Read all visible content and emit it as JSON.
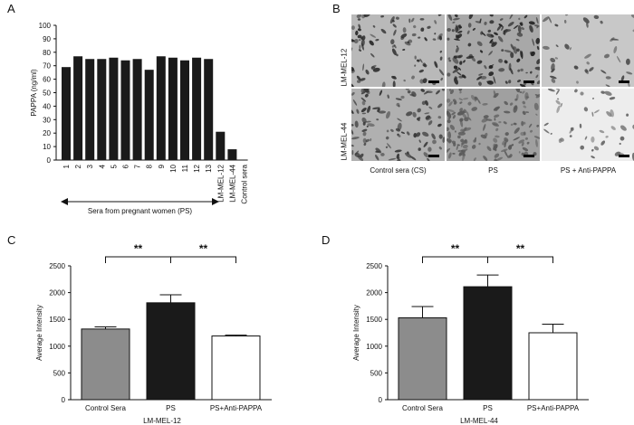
{
  "panels": {
    "A": "A",
    "B": "B",
    "C": "C",
    "D": "D"
  },
  "chart_data": [
    {
      "panel": "A",
      "type": "bar",
      "ylabel": "PAPPA (ng/ml)",
      "ylim": [
        0,
        100
      ],
      "yticks": [
        0,
        10,
        20,
        30,
        40,
        50,
        60,
        70,
        80,
        90,
        100
      ],
      "categories": [
        "1",
        "2",
        "3",
        "4",
        "5",
        "6",
        "7",
        "8",
        "9",
        "10",
        "11",
        "12",
        "13",
        "LM-MEL-12",
        "LM-MEL-44",
        "Control sera"
      ],
      "values": [
        69,
        77,
        75,
        75,
        76,
        74,
        75,
        67,
        77,
        76,
        74,
        76,
        75,
        21,
        8,
        0
      ],
      "annotation": "Sera from pregnant women (PS)",
      "colors": {
        "bar": "#1a1a1a"
      }
    },
    {
      "panel": "C",
      "type": "bar",
      "ylabel": "Average Intensity",
      "xlabel": "LM-MEL-12",
      "ylim": [
        0,
        2500
      ],
      "yticks": [
        0,
        500,
        1000,
        1500,
        2000,
        2500
      ],
      "categories": [
        "Control Sera",
        "PS",
        "PS+Anti-PAPPA"
      ],
      "values": [
        1320,
        1810,
        1190
      ],
      "errors": [
        40,
        150,
        15
      ],
      "bar_colors": [
        "#8c8c8c",
        "#1a1a1a",
        "#ffffff"
      ],
      "significance": [
        "**",
        "**"
      ]
    },
    {
      "panel": "D",
      "type": "bar",
      "ylabel": "Average Intensity",
      "xlabel": "LM-MEL-44",
      "ylim": [
        0,
        2500
      ],
      "yticks": [
        0,
        500,
        1000,
        1500,
        2000,
        2500
      ],
      "categories": [
        "Control Sera",
        "PS",
        "PS+Anti-PAPPA"
      ],
      "values": [
        1530,
        2110,
        1250
      ],
      "errors": [
        210,
        220,
        160
      ],
      "bar_colors": [
        "#8c8c8c",
        "#1a1a1a",
        "#ffffff"
      ],
      "significance": [
        "**",
        "**"
      ]
    }
  ],
  "micrographs": {
    "row_labels": [
      "LM-MEL-12",
      "LM-MEL-44"
    ],
    "col_labels": [
      "Control sera (CS)",
      "PS",
      "PS + Anti-PAPPA"
    ]
  }
}
